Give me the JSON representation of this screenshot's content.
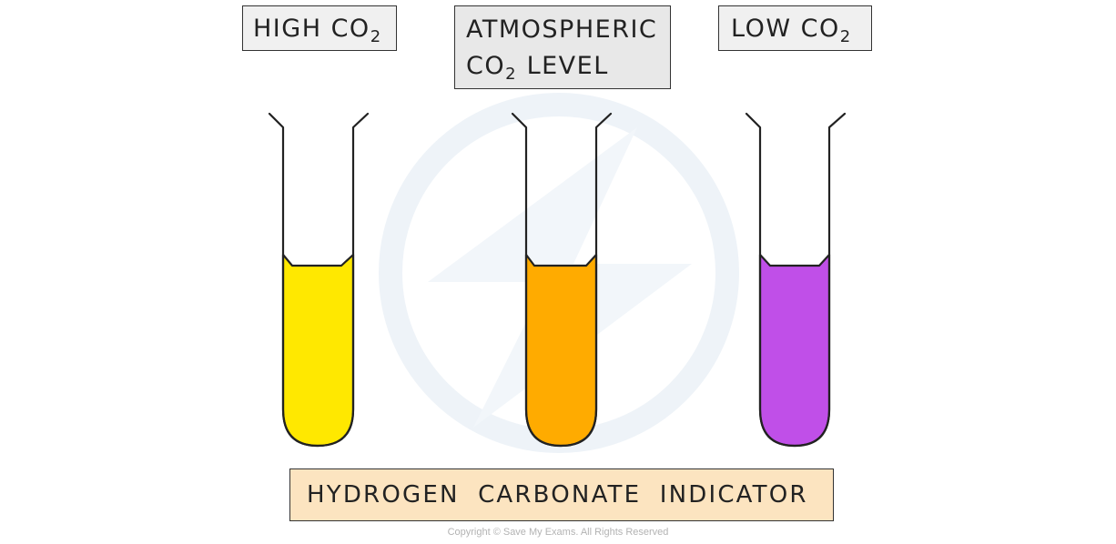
{
  "labels": {
    "high": {
      "text": "HIGH CO",
      "subscript": "2"
    },
    "atmospheric": {
      "line1": "ATMOSPHERIC",
      "line2_text": "CO",
      "line2_subscript": "2",
      "line2_rest": "LEVEL"
    },
    "low": {
      "text": "LOW CO",
      "subscript": "2"
    }
  },
  "indicator": {
    "text": "HYDROGEN CARBONATE INDICATOR"
  },
  "tubes": [
    {
      "name": "high-co2-tube",
      "liquid_color": "#ffe800"
    },
    {
      "name": "atmospheric-co2-tube",
      "liquid_color": "#ffab00"
    },
    {
      "name": "low-co2-tube",
      "liquid_color": "#c04fe8"
    }
  ],
  "copyright": "Copyright © Save My Exams. All Rights Reserved",
  "colors": {
    "label_box": "#f0f0f0",
    "indicator_box": "#fce4c0",
    "outline": "#333333",
    "watermark": "#eef3f8"
  }
}
